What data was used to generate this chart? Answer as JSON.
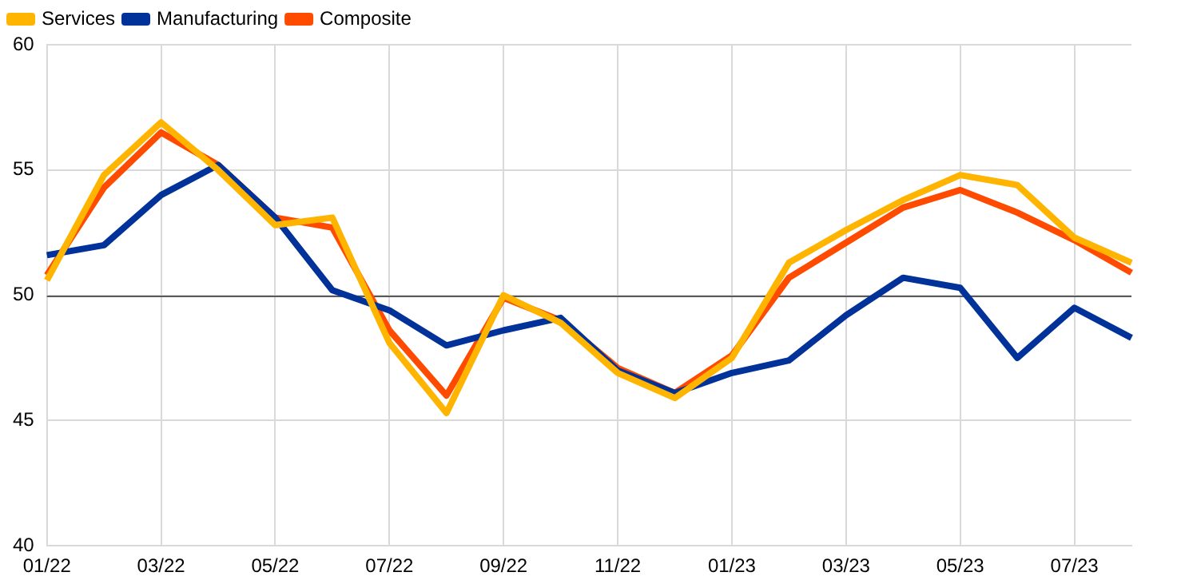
{
  "chart_data": {
    "type": "line",
    "categories": [
      "01/22",
      null,
      "03/22",
      null,
      "05/22",
      null,
      "07/22",
      null,
      "09/22",
      null,
      "11/22",
      null,
      "01/23",
      null,
      "03/23",
      null,
      "05/23",
      null,
      "07/23",
      null
    ],
    "series": [
      {
        "name": "Services",
        "color": "#ffb400",
        "values": [
          50.6,
          54.8,
          56.9,
          55.0,
          52.8,
          53.1,
          48.1,
          45.3,
          50.0,
          48.9,
          46.9,
          45.9,
          47.5,
          51.3,
          52.6,
          53.8,
          54.8,
          54.4,
          52.3,
          51.3
        ]
      },
      {
        "name": "Manufacturing",
        "color": "#003299",
        "values": [
          51.6,
          52.0,
          54.0,
          55.2,
          53.1,
          50.2,
          49.4,
          48.0,
          48.6,
          49.1,
          47.0,
          46.1,
          46.9,
          47.4,
          49.2,
          50.7,
          50.3,
          47.5,
          49.5,
          48.3
        ]
      },
      {
        "name": "Composite",
        "color": "#ff4b00",
        "values": [
          50.8,
          54.3,
          56.5,
          55.2,
          53.1,
          52.7,
          48.6,
          46.0,
          49.9,
          49.0,
          47.1,
          46.1,
          47.6,
          50.7,
          52.1,
          53.5,
          54.2,
          53.3,
          52.2,
          50.9
        ]
      }
    ],
    "ylim": [
      40,
      60
    ],
    "yticks": [
      40,
      45,
      50,
      55,
      60
    ],
    "ref_lines": [
      {
        "axis": "y",
        "value": 50,
        "color": "#595959"
      }
    ],
    "grid": true,
    "legend": "top left",
    "marker": "none",
    "line_style": "solid"
  }
}
